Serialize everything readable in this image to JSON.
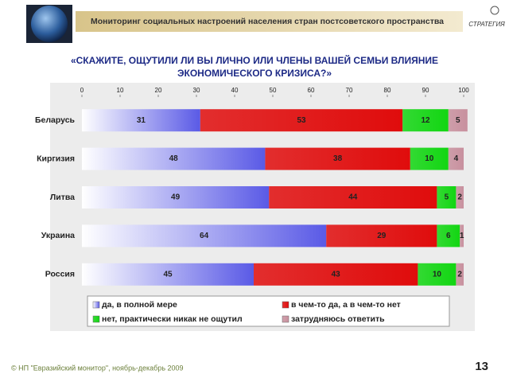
{
  "header": {
    "title": "Мониторинг социальных настроений населения стран постсоветского пространства",
    "logo": "СТРАТЕГИЯ"
  },
  "chart_data": {
    "type": "bar",
    "orientation": "horizontal",
    "stacked": true,
    "title": "«СКАЖИТЕ, ОЩУТИЛИ ЛИ ВЫ ЛИЧНО ИЛИ ЧЛЕНЫ ВАШЕЙ СЕМЬИ ВЛИЯНИЕ ЭКОНОМИЧЕСКОГО КРИЗИСА?»",
    "categories": [
      "Беларусь",
      "Киргизия",
      "Литва",
      "Украина",
      "Россия"
    ],
    "series": [
      {
        "name": "да, в полной мере",
        "color": "#5a5ae6",
        "values": [
          31,
          48,
          49,
          64,
          45
        ]
      },
      {
        "name": "в чем-то да, а в чем-то нет",
        "color": "#e00c0c",
        "values": [
          53,
          38,
          44,
          29,
          43
        ]
      },
      {
        "name": "нет, практически никак не ощутил",
        "color": "#12d612",
        "values": [
          12,
          10,
          5,
          6,
          10
        ]
      },
      {
        "name": "затрудняюсь ответить",
        "color": "#c8909e",
        "values": [
          5,
          4,
          2,
          1,
          2
        ]
      }
    ],
    "xlim": [
      0,
      100
    ],
    "xticks": [
      0,
      10,
      20,
      30,
      40,
      50,
      60,
      70,
      80,
      90,
      100
    ],
    "legend": "bottom"
  },
  "footer": {
    "source": "© НП \"Евразийский монитор\", ноябрь-декабрь 2009",
    "page": 13
  }
}
